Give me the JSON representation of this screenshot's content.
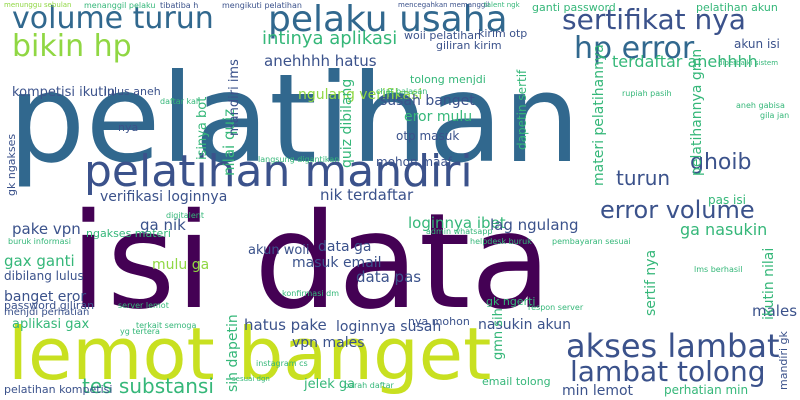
{
  "palette": {
    "dark_purple": "#440154",
    "indigo": "#3b528b",
    "slate_blue": "#31688e",
    "teal": "#21918c",
    "green": "#35b779",
    "lime": "#90d743",
    "yellow": "#c8e020"
  },
  "words": [
    {
      "text": "pelatihan",
      "color": "#31688e"
    },
    {
      "text": "isi data",
      "color": "#440154"
    },
    {
      "text": "lemot banget",
      "color": "#c8e020"
    },
    {
      "text": "pelatihan mandiri",
      "color": "#3b528b"
    },
    {
      "text": "pelaku usaha",
      "color": "#31688e"
    },
    {
      "text": "volume turun",
      "color": "#31688e"
    },
    {
      "text": "sertifikat nya",
      "color": "#3b528b"
    },
    {
      "text": "bikin hp",
      "color": "#90d743"
    },
    {
      "text": "hp error",
      "color": "#31688e"
    },
    {
      "text": "akses lambat",
      "color": "#3b528b"
    },
    {
      "text": "lambat tolong",
      "color": "#3b528b"
    },
    {
      "text": "error volume",
      "color": "#3b528b"
    },
    {
      "text": "turun",
      "color": "#3b528b"
    },
    {
      "text": "ghoib",
      "color": "#3b528b"
    },
    {
      "text": "tes substansi",
      "color": "#35b779"
    },
    {
      "text": "intinya aplikasi",
      "color": "#35b779"
    },
    {
      "text": "terdaftar anehhhh",
      "color": "#35b779"
    },
    {
      "text": "anehhhh hatus",
      "color": "#3b528b"
    },
    {
      "text": "nik terdaftar",
      "color": "#3b528b"
    },
    {
      "text": "verifikasi loginnya",
      "color": "#3b528b"
    },
    {
      "text": "pake vpn",
      "color": "#3b528b"
    },
    {
      "text": "ga nik",
      "color": "#3b528b"
    },
    {
      "text": "gax ganti",
      "color": "#35b779"
    },
    {
      "text": "dibilang lulus",
      "color": "#3b528b"
    },
    {
      "text": "banget eror",
      "color": "#3b528b"
    },
    {
      "text": "mulu ga",
      "color": "#90d743"
    },
    {
      "text": "aplikasi gax",
      "color": "#35b779"
    },
    {
      "text": "hatus pake",
      "color": "#3b528b"
    },
    {
      "text": "vpn males",
      "color": "#3b528b"
    },
    {
      "text": "loginnya susah",
      "color": "#3b528b"
    },
    {
      "text": "data pas",
      "color": "#3b528b"
    },
    {
      "text": "data ga",
      "color": "#3b528b"
    },
    {
      "text": "masuk email",
      "color": "#3b528b"
    },
    {
      "text": "loginnya ibet",
      "color": "#35b779"
    },
    {
      "text": "lag ngulang",
      "color": "#3b528b"
    },
    {
      "text": "ga nasukin",
      "color": "#35b779"
    },
    {
      "text": "nasukin akun",
      "color": "#3b528b"
    },
    {
      "text": "min lemot",
      "color": "#3b528b"
    },
    {
      "text": "jelek ga",
      "color": "#35b779"
    },
    {
      "text": "akun woii",
      "color": "#3b528b"
    },
    {
      "text": "ngulang verifikasi",
      "color": "#90d743"
    },
    {
      "text": "susah banget",
      "color": "#3b528b"
    },
    {
      "text": "eror mulu",
      "color": "#35b779"
    },
    {
      "text": "otp masuk",
      "color": "#3b528b"
    },
    {
      "text": "mohon maaf",
      "color": "#3b528b"
    },
    {
      "text": "kompetisi ikutin",
      "color": "#3b528b"
    },
    {
      "text": "akun isi",
      "color": "#3b528b"
    },
    {
      "text": "pas isi",
      "color": "#35b779"
    },
    {
      "text": "males lag",
      "color": "#3b528b"
    },
    {
      "text": "ganti password",
      "color": "#35b779"
    },
    {
      "text": "pelatihan akun",
      "color": "#35b779"
    },
    {
      "text": "tolong menjdi",
      "color": "#35b779"
    },
    {
      "text": "giliran kirim",
      "color": "#3b528b"
    },
    {
      "text": "kirim otp",
      "color": "#3b528b"
    },
    {
      "text": "lulus aneh",
      "color": "#3b528b"
    },
    {
      "text": "nya",
      "color": "#3b528b"
    },
    {
      "text": "email tolong",
      "color": "#35b779"
    },
    {
      "text": "password giliran",
      "color": "#3b528b"
    },
    {
      "text": "menjdi perhatian",
      "color": "#3b528b"
    },
    {
      "text": "pelatihan kompetisi",
      "color": "#3b528b"
    },
    {
      "text": "nya mohon",
      "color": "#3b528b"
    },
    {
      "text": "ngakses materi",
      "color": "#35b779"
    },
    {
      "text": "gk ngerti",
      "color": "#35b779"
    },
    {
      "text": "perhatian min",
      "color": "#35b779"
    },
    {
      "text": "sih dapetin",
      "color": "#35b779"
    },
    {
      "text": "nilai quiz",
      "color": "#35b779"
    },
    {
      "text": "isinya bot",
      "color": "#35b779"
    },
    {
      "text": "mandiri ims",
      "color": "#3b528b"
    },
    {
      "text": "quiz dibilang",
      "color": "#35b779"
    },
    {
      "text": "materi pelatihannya",
      "color": "#35b779"
    },
    {
      "text": "pelatihannya gmn",
      "color": "#35b779"
    },
    {
      "text": "ikutin nilai",
      "color": "#35b779"
    },
    {
      "text": "sertif nya",
      "color": "#35b779"
    },
    {
      "text": "gmn sih",
      "color": "#35b779"
    },
    {
      "text": "dapetin sertif",
      "color": "#35b779"
    },
    {
      "text": "mandiri gk",
      "color": "#3b528b"
    },
    {
      "text": "gk ngakses",
      "color": "#3b528b"
    },
    {
      "text": "woii pelatihan",
      "color": "#3b528b"
    },
    {
      "text": "menunggu sebulan",
      "color": "#90d743"
    },
    {
      "text": "menanggil pelaku",
      "color": "#35b779"
    },
    {
      "text": "mengikuti pelatihan",
      "color": "#3b528b"
    },
    {
      "text": "tibatiba h",
      "color": "#3b528b"
    },
    {
      "text": "mencegahkan memanggil",
      "color": "#3b528b"
    },
    {
      "text": "digitalent",
      "color": "#35b779"
    },
    {
      "text": "talent ngk",
      "color": "#35b779"
    },
    {
      "text": "admin whatsapp",
      "color": "#35b779"
    },
    {
      "text": "pembayaran sesuai",
      "color": "#35b779"
    },
    {
      "text": "respon server",
      "color": "#35b779"
    },
    {
      "text": "parah daftar",
      "color": "#35b779"
    },
    {
      "text": "instagram cs",
      "color": "#35b779"
    },
    {
      "text": "helpdesk buruk",
      "color": "#35b779"
    },
    {
      "text": "konfirmasi dm",
      "color": "#35b779"
    },
    {
      "text": "buruk informasi",
      "color": "#35b779"
    },
    {
      "text": "server lemot",
      "color": "#35b779"
    },
    {
      "text": "rupiah pasih",
      "color": "#35b779"
    },
    {
      "text": "chat balasan",
      "color": "#35b779"
    },
    {
      "text": "aneh gabisa",
      "color": "#35b779"
    },
    {
      "text": "gila jan",
      "color": "#35b779"
    },
    {
      "text": "lms berhasil",
      "color": "#35b779"
    },
    {
      "text": "sesuai dgn",
      "color": "#35b779"
    },
    {
      "text": "terkait semoga",
      "color": "#35b779"
    },
    {
      "text": "daftar kali",
      "color": "#35b779"
    },
    {
      "text": "diperbaiki sistem",
      "color": "#35b779"
    },
    {
      "text": "langsung digantikan",
      "color": "#35b779"
    },
    {
      "text": "yg tertera",
      "color": "#35b779"
    }
  ]
}
